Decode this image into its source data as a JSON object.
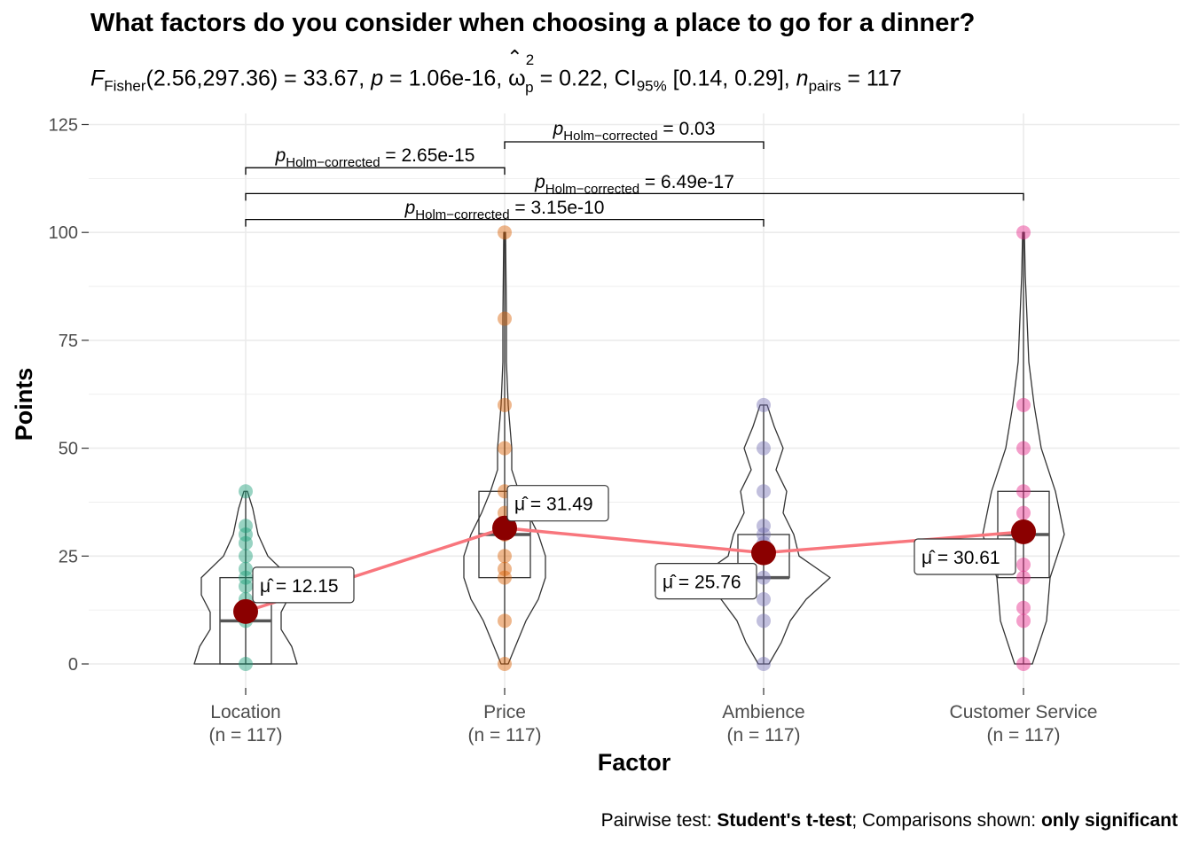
{
  "title": "What factors do you consider when choosing a place to go for a dinner?",
  "subtitle": {
    "F_label": "F",
    "F_sub": "Fisher",
    "F_value": "(2.56,297.36) = 33.67, ",
    "p_label": "p",
    "p_value": " = 1.06e-16, ",
    "omega_symbol": "ω",
    "omega_sup": "2",
    "omega_sub": "p",
    "omega_value": " = 0.22, CI",
    "ci_sub": "95%",
    "ci_value": " [0.14, 0.29], ",
    "n_label": "n",
    "n_sub": "pairs",
    "n_value": " = 117"
  },
  "caption": {
    "prefix": "Pairwise test: ",
    "test": "Student's t-test",
    "middle": "; Comparisons shown: ",
    "shown": "only significant"
  },
  "chart_data": {
    "type": "violin-box-scatter",
    "xlabel": "Factor",
    "ylabel": "Points",
    "ylim": [
      -10,
      125
    ],
    "yticks": [
      0,
      25,
      50,
      75,
      100,
      125
    ],
    "grid": true,
    "categories": [
      "Location",
      "Price",
      "Ambience",
      "Customer Service"
    ],
    "category_n": [
      "(n = 117)",
      "(n = 117)",
      "(n = 117)",
      "(n = 117)"
    ],
    "colors": [
      "#1B9E77",
      "#D95F02",
      "#7570B3",
      "#E7298A"
    ],
    "mean_color": "#8B0000",
    "mean_line_color": "#F8767D",
    "means": [
      12.15,
      31.49,
      25.76,
      30.61
    ],
    "mean_labels": [
      "= 12.15",
      "= 31.49",
      "= 25.76",
      "= 30.61"
    ],
    "mean_symbol": "μ̂",
    "boxes": [
      {
        "q1": 0,
        "median": 10,
        "q3": 20,
        "min": 0,
        "max": 40
      },
      {
        "q1": 20,
        "median": 30,
        "q3": 40,
        "min": 0,
        "max": 100
      },
      {
        "q1": 20,
        "median": 20,
        "q3": 30,
        "min": 0,
        "max": 60
      },
      {
        "q1": 20,
        "median": 30,
        "q3": 40,
        "min": 0,
        "max": 100
      }
    ],
    "points": [
      [
        0,
        10,
        12,
        15,
        18,
        20,
        22,
        25,
        28,
        30,
        32,
        40
      ],
      [
        0,
        10,
        20,
        22,
        25,
        30,
        35,
        40,
        50,
        60,
        80,
        100
      ],
      [
        0,
        10,
        15,
        20,
        25,
        28,
        30,
        32,
        40,
        50,
        60
      ],
      [
        0,
        10,
        13,
        20,
        23,
        30,
        35,
        40,
        50,
        60,
        100
      ]
    ],
    "comparisons": [
      {
        "from": 0,
        "to": 1,
        "y": 115,
        "label_sub": "Holm−corrected",
        "value": "= 2.65e-15"
      },
      {
        "from": 1,
        "to": 2,
        "y": 121,
        "label_sub": "Holm−corrected",
        "value": "= 0.03"
      },
      {
        "from": 0,
        "to": 3,
        "y": 109,
        "label_sub": "Holm−corrected",
        "value": "= 6.49e-17"
      },
      {
        "from": 0,
        "to": 2,
        "y": 103,
        "label_sub": "Holm−corrected",
        "value": "= 3.15e-10"
      }
    ],
    "comparison_p": "p"
  }
}
